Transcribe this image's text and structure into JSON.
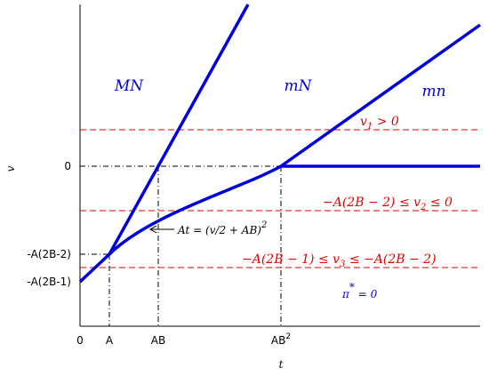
{
  "axes": {
    "x_label": "t",
    "y_label": "v",
    "x_ticks": [
      {
        "text": "0"
      },
      {
        "text": "A"
      },
      {
        "text": "AB"
      },
      {
        "text": "AB",
        "sup": "2"
      }
    ],
    "y_ticks": [
      {
        "text": "0"
      },
      {
        "text": "-A(2B-2)"
      },
      {
        "text": "-A(2B-1)"
      }
    ]
  },
  "regions": [
    {
      "text": "MN"
    },
    {
      "text": "mN"
    },
    {
      "text": "mn"
    }
  ],
  "conditions": [
    {
      "before": "v",
      "sub": "1",
      "after": " > 0"
    },
    {
      "before": "−A(2B − 2) ≤ v",
      "sub": "2",
      "after": " ≤ 0"
    },
    {
      "before": "−A(2B − 1) ≤ v",
      "sub": "3",
      "after": " ≤ −A(2B − 2)"
    }
  ],
  "curve_label": {
    "before": "At = (v/2 + AB)",
    "sup": "2"
  },
  "pi_label": {
    "before": "π",
    "sup": "*",
    "after": " = 0"
  }
}
